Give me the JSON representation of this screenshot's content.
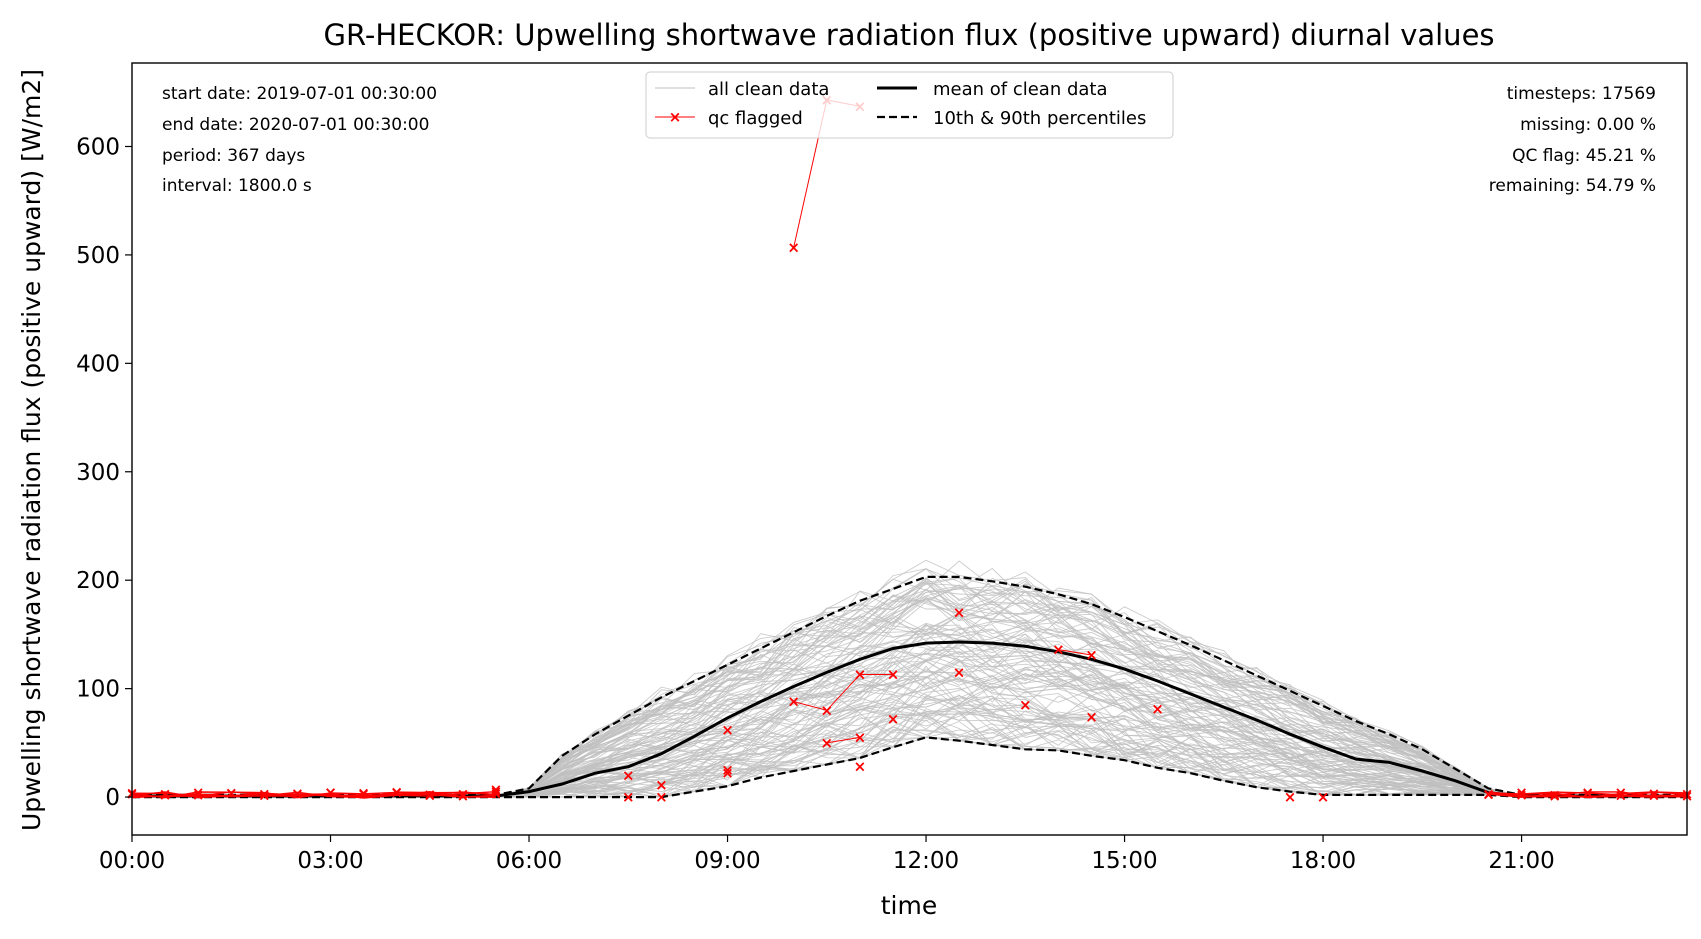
{
  "chart_data": {
    "type": "line",
    "title": "GR-HECKOR: Upwelling shortwave radiation flux (positive upward) diurnal values",
    "xlabel": "time",
    "ylabel": "Upwelling shortwave radiation flux (positive upward) [W/m2]",
    "x_ticks": [
      "00:00",
      "03:00",
      "06:00",
      "09:00",
      "12:00",
      "15:00",
      "18:00",
      "21:00"
    ],
    "x_tick_hours": [
      0,
      3,
      6,
      9,
      12,
      15,
      18,
      21
    ],
    "y_ticks": [
      0,
      100,
      200,
      300,
      400,
      500,
      600
    ],
    "xlim": [
      0,
      23.5
    ],
    "ylim": [
      -35,
      677
    ],
    "grid": false,
    "legend_position": "top-center",
    "legend": {
      "clean": "all clean data",
      "qc": "qc flagged",
      "mean": "mean of clean data",
      "pct": "10th & 90th percentiles"
    },
    "info_left": [
      "start date: 2019-07-01 00:30:00",
      "end date: 2020-07-01 00:30:00",
      "period: 367 days",
      "interval: 1800.0 s"
    ],
    "info_right": [
      "timesteps: 17569",
      "missing: 0.00 %",
      "QC flag: 45.21 %",
      "remaining: 54.79 %"
    ],
    "x_hours": [
      0,
      0.5,
      1,
      1.5,
      2,
      2.5,
      3,
      3.5,
      4,
      4.5,
      5,
      5.5,
      6,
      6.5,
      7,
      7.5,
      8,
      8.5,
      9,
      9.5,
      10,
      10.5,
      11,
      11.5,
      12,
      12.5,
      13,
      13.5,
      14,
      14.5,
      15,
      15.5,
      16,
      16.5,
      17,
      17.5,
      18,
      18.5,
      19,
      19.5,
      20,
      20.5,
      21,
      21.5,
      22,
      22.5,
      23,
      23.5
    ],
    "series": [
      {
        "name": "mean of clean data",
        "values": [
          1,
          1,
          1,
          1,
          1,
          1,
          1,
          1,
          1,
          1,
          1,
          1,
          5,
          12,
          22,
          28,
          40,
          56,
          73,
          88,
          102,
          115,
          127,
          137,
          142,
          143,
          142,
          139,
          134,
          127,
          118,
          107,
          95,
          83,
          71,
          58,
          46,
          35,
          32,
          24,
          15,
          4,
          1,
          1,
          1,
          1,
          1,
          1
        ]
      },
      {
        "name": "10th & 90th percentiles",
        "values": [
          0,
          0,
          0,
          0,
          0,
          0,
          0,
          0,
          0,
          0,
          0,
          0,
          0,
          0,
          0,
          0,
          0,
          5,
          10,
          18,
          24,
          30,
          36,
          46,
          55,
          52,
          48,
          44,
          43,
          38,
          34,
          27,
          22,
          15,
          9,
          5,
          2,
          2,
          2,
          2,
          2,
          2,
          0,
          0,
          0,
          0,
          0,
          0
        ]
      },
      {
        "name": "10th & 90th percentiles",
        "values": [
          2,
          2,
          2,
          2,
          2,
          2,
          2,
          2,
          2,
          2,
          2,
          2,
          8,
          38,
          58,
          75,
          92,
          107,
          122,
          137,
          152,
          167,
          181,
          192,
          203,
          203,
          199,
          194,
          187,
          178,
          166,
          153,
          140,
          126,
          112,
          98,
          84,
          70,
          58,
          44,
          26,
          8,
          2,
          2,
          2,
          2,
          2,
          2
        ]
      }
    ],
    "qc_flagged": {
      "name": "qc flagged",
      "points": [
        [
          10,
          507
        ],
        [
          10.5,
          643
        ],
        [
          11,
          637
        ],
        [
          12.5,
          170
        ],
        [
          12.5,
          115
        ],
        [
          14,
          136
        ],
        [
          14.5,
          131
        ],
        [
          10,
          88
        ],
        [
          10.5,
          80
        ],
        [
          11,
          113
        ],
        [
          11.5,
          113
        ],
        [
          10.5,
          50
        ],
        [
          11,
          55
        ],
        [
          11,
          28
        ],
        [
          11.5,
          72
        ],
        [
          9,
          62
        ],
        [
          9,
          25
        ],
        [
          9,
          22
        ],
        [
          7.5,
          20
        ],
        [
          8,
          11
        ],
        [
          7.5,
          0
        ],
        [
          8,
          0
        ],
        [
          13.5,
          85
        ],
        [
          14.5,
          74
        ],
        [
          15.5,
          81
        ],
        [
          17.5,
          0
        ],
        [
          18,
          0
        ],
        [
          5.5,
          7
        ]
      ]
    }
  }
}
